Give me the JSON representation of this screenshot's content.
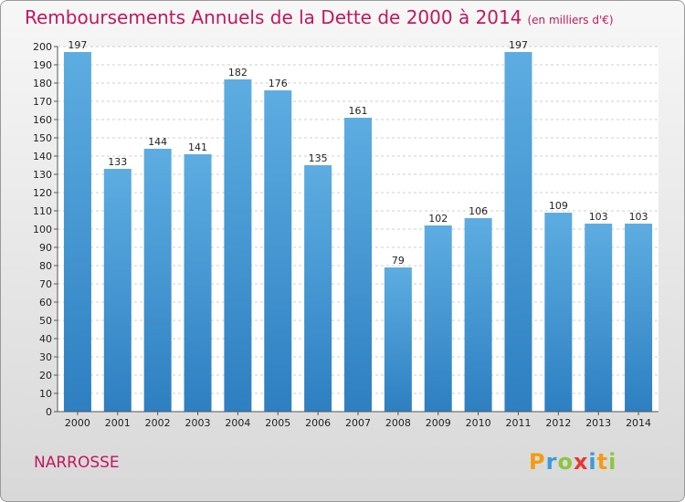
{
  "header": {
    "title": "Remboursements Annuels de la Dette de 2000 à 2014",
    "unit": "(en milliers d'€)"
  },
  "footer": {
    "commune": "NARROSSE",
    "brand": [
      "P",
      "r",
      "o",
      "x",
      "i",
      "t",
      "i"
    ],
    "brand_colors": [
      "#f39c12",
      "#3a9bdc",
      "#8cc63f",
      "#e53935",
      "#3a9bdc",
      "#f39c12",
      "#8cc63f"
    ]
  },
  "chart_data": {
    "type": "bar",
    "categories": [
      "2000",
      "2001",
      "2002",
      "2003",
      "2004",
      "2005",
      "2006",
      "2007",
      "2008",
      "2009",
      "2010",
      "2011",
      "2012",
      "2013",
      "2014"
    ],
    "values": [
      197,
      133,
      144,
      141,
      182,
      176,
      135,
      161,
      79,
      102,
      106,
      197,
      109,
      103,
      103
    ],
    "title": "Remboursements Annuels de la Dette de 2000 à 2014",
    "ylim": [
      0,
      200
    ],
    "ytick_step": 10,
    "grid": true,
    "bar_color_top": "#5dade2",
    "bar_color_bottom": "#2e7fc1"
  }
}
